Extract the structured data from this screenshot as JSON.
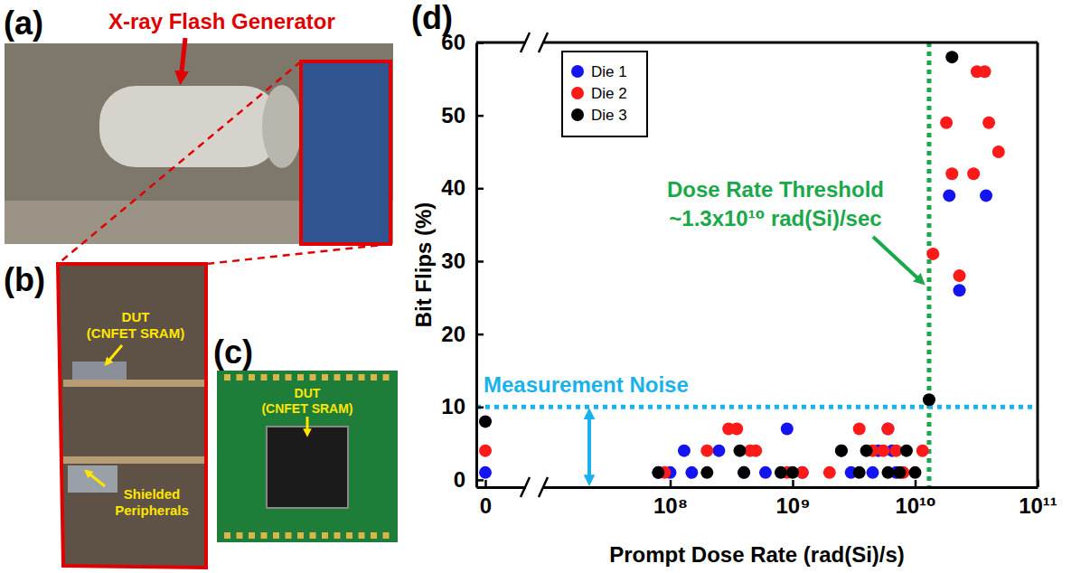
{
  "chart_data": {
    "type": "scatter",
    "panel": "(d)",
    "x_label": "Prompt Dose Rate (rad(Si)/s)",
    "y_label": "Bit Flips (%)",
    "log": "x",
    "x_break": [
      0,
      10000000
    ],
    "xlim": [
      0,
      100000000000
    ],
    "xticks": [
      0,
      {
        "value": 100000000,
        "label": "10⁸"
      },
      {
        "value": 1000000000,
        "label": "10⁹"
      },
      {
        "value": 10000000000,
        "label": "10¹⁰"
      },
      {
        "value": 100000000000,
        "label": "10¹¹"
      }
    ],
    "ylim": [
      -1,
      60
    ],
    "yticks": [
      0,
      10,
      20,
      30,
      40,
      50,
      60
    ],
    "grid": false,
    "legend": "top-left",
    "marker": "circle",
    "series": [
      {
        "name": "Die 1",
        "color": "#1414f0",
        "x": [
          0,
          80000000,
          100000000,
          130000000,
          150000000,
          250000000,
          400000000,
          600000000,
          900000000,
          1200000000,
          2500000000,
          3000000000,
          4500000000,
          5000000000,
          6000000000,
          6500000000,
          7000000000,
          19000000000,
          23000000000,
          38000000000
        ],
        "values": [
          1,
          1,
          1,
          4,
          1,
          4,
          1,
          1,
          7,
          1,
          4,
          1,
          1,
          4,
          7,
          4,
          1,
          39,
          26,
          39
        ]
      },
      {
        "name": "Die 2",
        "color": "#ff1a1a",
        "x": [
          0,
          90000000,
          200000000,
          300000000,
          350000000,
          450000000,
          500000000,
          900000000,
          1200000000,
          2000000000,
          3500000000,
          4500000000,
          5500000000,
          6000000000,
          7000000000,
          8000000000,
          11500000000,
          14000000000,
          18000000000,
          20000000000,
          23000000000,
          30000000000,
          32000000000,
          37000000000,
          40000000000,
          48000000000
        ],
        "values": [
          4,
          1,
          4,
          7,
          7,
          4,
          4,
          1,
          1,
          1,
          7,
          4,
          4,
          7,
          4,
          1,
          4,
          31,
          49,
          42,
          28,
          42,
          56,
          56,
          49,
          45
        ]
      },
      {
        "name": "Die 3",
        "color": "#000000",
        "x": [
          0,
          80000000,
          200000000,
          370000000,
          400000000,
          800000000,
          1000000000,
          2500000000,
          3500000000,
          4000000000,
          6000000000,
          7500000000,
          8500000000,
          10000000000,
          13000000000,
          20000000000
        ],
        "values": [
          8,
          1,
          1,
          4,
          1,
          1,
          1,
          4,
          1,
          4,
          1,
          1,
          4,
          1,
          11,
          58
        ]
      }
    ],
    "annotations": [
      {
        "type": "vline",
        "value": 13000000000,
        "label": [
          "Dose Rate Threshold",
          "~1.3x10¹⁰ rad(Si)/sec"
        ],
        "color": "#1aa84a"
      },
      {
        "type": "hline",
        "value": 10,
        "label": "Measurement Noise",
        "color": "#1ab2ea"
      }
    ]
  },
  "photos": [
    {
      "letter": "(a)",
      "callout": "X-ray Flash Generator"
    },
    {
      "letter": "(b)",
      "labels": [
        [
          "DUT",
          "(CNFET SRAM)"
        ],
        [
          "Shielded",
          "Peripherals"
        ]
      ]
    },
    {
      "letter": "(c)",
      "labels": [
        [
          "DUT",
          "(CNFET SRAM)"
        ]
      ]
    }
  ]
}
